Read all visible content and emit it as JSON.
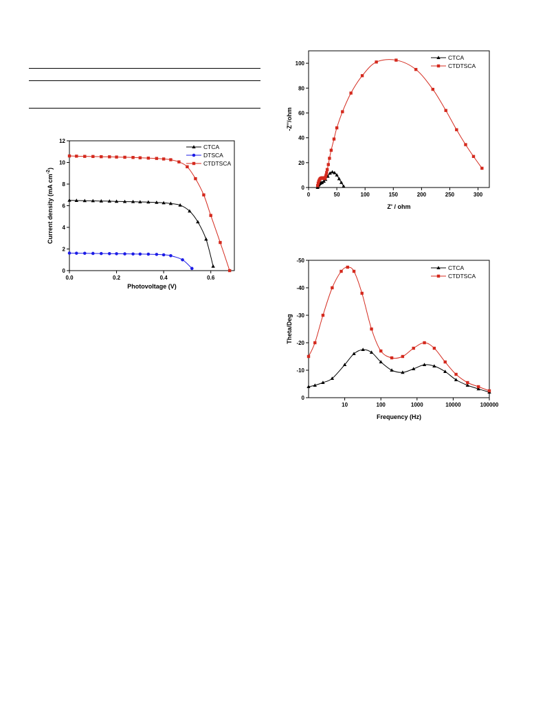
{
  "table": {
    "rows": 3
  },
  "chart_data": [
    {
      "id": "jv",
      "type": "line",
      "xlabel": "Photovoltage (V)",
      "ylabel": "Current density (mA cm",
      "ylabel_sup": "-2",
      "ylabel_end": ")",
      "xlim": [
        0.0,
        0.7
      ],
      "ylim": [
        0,
        12
      ],
      "xticks": [
        0.0,
        0.2,
        0.4,
        0.6
      ],
      "xtick_labels": [
        "0.0",
        "0.2",
        "0.4",
        "0.6"
      ],
      "yticks": [
        0,
        2,
        4,
        6,
        8,
        10,
        12
      ],
      "ytick_labels": [
        "0",
        "2",
        "4",
        "6",
        "8",
        "10",
        "12"
      ],
      "grid": false,
      "legend_position": "top-right",
      "series": [
        {
          "name": "CTCA",
          "color": "#000000",
          "marker": "triangle",
          "x": [
            0.0,
            0.03,
            0.065,
            0.1,
            0.135,
            0.17,
            0.2,
            0.235,
            0.27,
            0.3,
            0.335,
            0.37,
            0.4,
            0.43,
            0.47,
            0.51,
            0.545,
            0.58,
            0.61
          ],
          "y": [
            6.5,
            6.48,
            6.46,
            6.45,
            6.43,
            6.42,
            6.4,
            6.38,
            6.37,
            6.35,
            6.33,
            6.3,
            6.26,
            6.2,
            6.05,
            5.5,
            4.5,
            2.9,
            0.4
          ]
        },
        {
          "name": "DTSCA",
          "color": "#1c1ce6",
          "marker": "circle",
          "x": [
            0.0,
            0.03,
            0.065,
            0.1,
            0.135,
            0.17,
            0.2,
            0.235,
            0.27,
            0.3,
            0.335,
            0.37,
            0.4,
            0.43,
            0.48,
            0.52
          ],
          "y": [
            1.62,
            1.61,
            1.6,
            1.59,
            1.58,
            1.57,
            1.56,
            1.55,
            1.54,
            1.53,
            1.52,
            1.5,
            1.46,
            1.38,
            1.0,
            0.2
          ]
        },
        {
          "name": "CTDTSCA",
          "color": "#d42a1e",
          "marker": "square",
          "x": [
            0.0,
            0.03,
            0.065,
            0.1,
            0.135,
            0.17,
            0.2,
            0.235,
            0.27,
            0.3,
            0.335,
            0.37,
            0.4,
            0.43,
            0.465,
            0.5,
            0.535,
            0.57,
            0.6,
            0.64,
            0.68
          ],
          "y": [
            10.6,
            10.58,
            10.56,
            10.55,
            10.53,
            10.52,
            10.5,
            10.48,
            10.46,
            10.43,
            10.4,
            10.37,
            10.32,
            10.25,
            10.05,
            9.6,
            8.5,
            7.0,
            5.1,
            2.6,
            0.0
          ]
        }
      ]
    },
    {
      "id": "nyquist",
      "type": "line",
      "xlabel": "Z' / ohm",
      "ylabel": "-Z''/ohm",
      "xlim": [
        0,
        320
      ],
      "ylim": [
        0,
        110
      ],
      "xticks": [
        0,
        50,
        100,
        150,
        200,
        250,
        300
      ],
      "xtick_labels": [
        "0",
        "50",
        "100",
        "150",
        "200",
        "250",
        "300"
      ],
      "yticks": [
        0,
        20,
        40,
        60,
        80,
        100
      ],
      "ytick_labels": [
        "0",
        "20",
        "40",
        "60",
        "80",
        "100"
      ],
      "grid": false,
      "legend_position": "top-right",
      "series": [
        {
          "name": "CTCA",
          "color": "#000000",
          "marker": "triangle",
          "x": [
            16,
            17,
            18,
            19,
            20,
            21,
            22,
            24,
            27,
            30,
            34,
            38,
            42,
            46,
            50,
            54,
            58,
            62
          ],
          "y": [
            0,
            1,
            2,
            2.8,
            3.3,
            3.6,
            3.8,
            4.0,
            5.0,
            6.5,
            9.0,
            11.5,
            12.5,
            11.8,
            10.0,
            7.0,
            4.0,
            1.0
          ]
        },
        {
          "name": "CTDTSCA",
          "color": "#d42a1e",
          "marker": "square",
          "x": [
            16,
            17,
            18,
            19,
            20,
            21,
            22,
            23,
            24,
            25,
            26,
            27,
            28,
            29,
            30,
            31,
            32,
            33,
            35,
            37,
            40,
            45,
            50,
            60,
            75,
            95,
            120,
            155,
            190,
            220,
            243,
            262,
            278,
            292,
            307
          ],
          "y": [
            1.5,
            3.5,
            5.0,
            6.0,
            6.8,
            7.2,
            7.5,
            7.7,
            7.8,
            7.8,
            7.6,
            7.3,
            7.2,
            7.5,
            8.5,
            10.0,
            12.0,
            14.5,
            18.5,
            23.5,
            30.0,
            39.0,
            48.0,
            61.0,
            76.0,
            90.0,
            101.0,
            102.5,
            95.0,
            79.0,
            62.0,
            46.5,
            34.5,
            25.0,
            15.5
          ]
        }
      ]
    },
    {
      "id": "bode",
      "type": "line",
      "xlabel": "Frequency (Hz)",
      "ylabel": "Theta/Deg",
      "xscale": "log",
      "xlim": [
        1,
        100000
      ],
      "ylim": [
        0,
        -50
      ],
      "xticks": [
        10,
        100,
        1000,
        10000,
        100000
      ],
      "xtick_labels": [
        "10",
        "100",
        "1000",
        "10000",
        "100000"
      ],
      "yticks": [
        0,
        -10,
        -20,
        -30,
        -40,
        -50
      ],
      "ytick_labels": [
        "0",
        "-10",
        "-20",
        "-30",
        "-40",
        "-50"
      ],
      "grid": false,
      "legend_position": "top-right",
      "series": [
        {
          "name": "CTCA",
          "color": "#000000",
          "marker": "triangle",
          "x": [
            1,
            1.5,
            2.5,
            4.5,
            10,
            18,
            32,
            55,
            100,
            200,
            400,
            800,
            1600,
            3000,
            6000,
            12000,
            25000,
            50000,
            100000
          ],
          "y": [
            -4,
            -4.5,
            -5.5,
            -7,
            -12,
            -16,
            -17.5,
            -16.5,
            -13,
            -10,
            -9.2,
            -10.5,
            -12,
            -11.5,
            -9.5,
            -6.5,
            -4.5,
            -3.2,
            -2
          ]
        },
        {
          "name": "CTDTSCA",
          "color": "#d42a1e",
          "marker": "square",
          "x": [
            1,
            1.5,
            2.5,
            4.5,
            8,
            12,
            18,
            30,
            55,
            100,
            200,
            400,
            800,
            1600,
            3000,
            6000,
            12000,
            25000,
            50000,
            100000
          ],
          "y": [
            -15,
            -20,
            -30,
            -40,
            -46,
            -47.5,
            -46,
            -38,
            -25,
            -17,
            -14.5,
            -15,
            -18,
            -20,
            -18,
            -13,
            -8.5,
            -5.5,
            -4,
            -2.5
          ]
        }
      ]
    }
  ]
}
